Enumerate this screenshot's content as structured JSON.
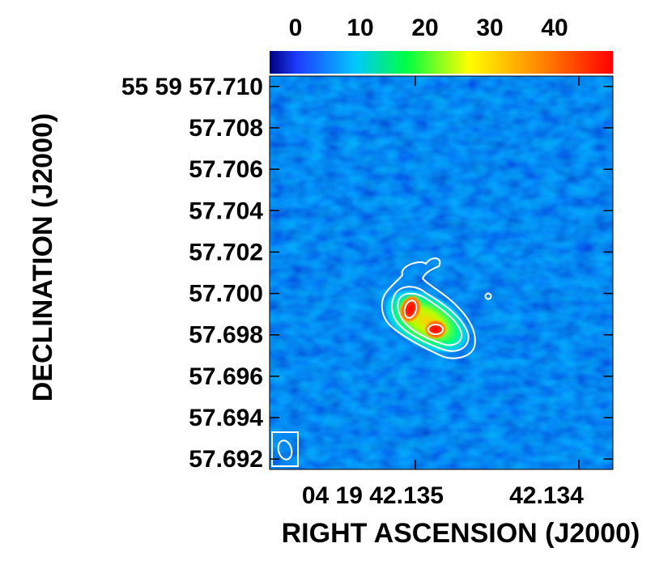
{
  "chart_data": {
    "type": "heatmap",
    "title": "",
    "xlabel": "RIGHT ASCENSION (J2000)",
    "ylabel": "DECLINATION (J2000)",
    "x_tick_labels": [
      "04 19 42.135",
      "42.134"
    ],
    "y_tick_labels": [
      "55 59 57.710",
      "57.708",
      "57.706",
      "57.704",
      "57.702",
      "57.700",
      "57.698",
      "57.696",
      "57.694",
      "57.692"
    ],
    "y_ticks": [
      57.71,
      57.708,
      57.706,
      57.704,
      57.702,
      57.7,
      57.698,
      57.696,
      57.694,
      57.692
    ],
    "ylim": [
      57.6915,
      57.7105
    ],
    "colorbar": {
      "ticks": [
        0,
        10,
        20,
        30,
        40
      ],
      "range": [
        -4,
        49
      ],
      "colormap": [
        "#000080",
        "#1e3cff",
        "#00c8ff",
        "#00ff40",
        "#ffff00",
        "#ff8000",
        "#ff0000"
      ]
    },
    "background_color": "#1f4de8",
    "contour_color": "#ffffff",
    "beam_ellipse": "lower-left",
    "features": {
      "peaks": [
        {
          "name": "peak-1",
          "value": 48
        },
        {
          "name": "peak-2",
          "value": 45
        }
      ]
    }
  }
}
